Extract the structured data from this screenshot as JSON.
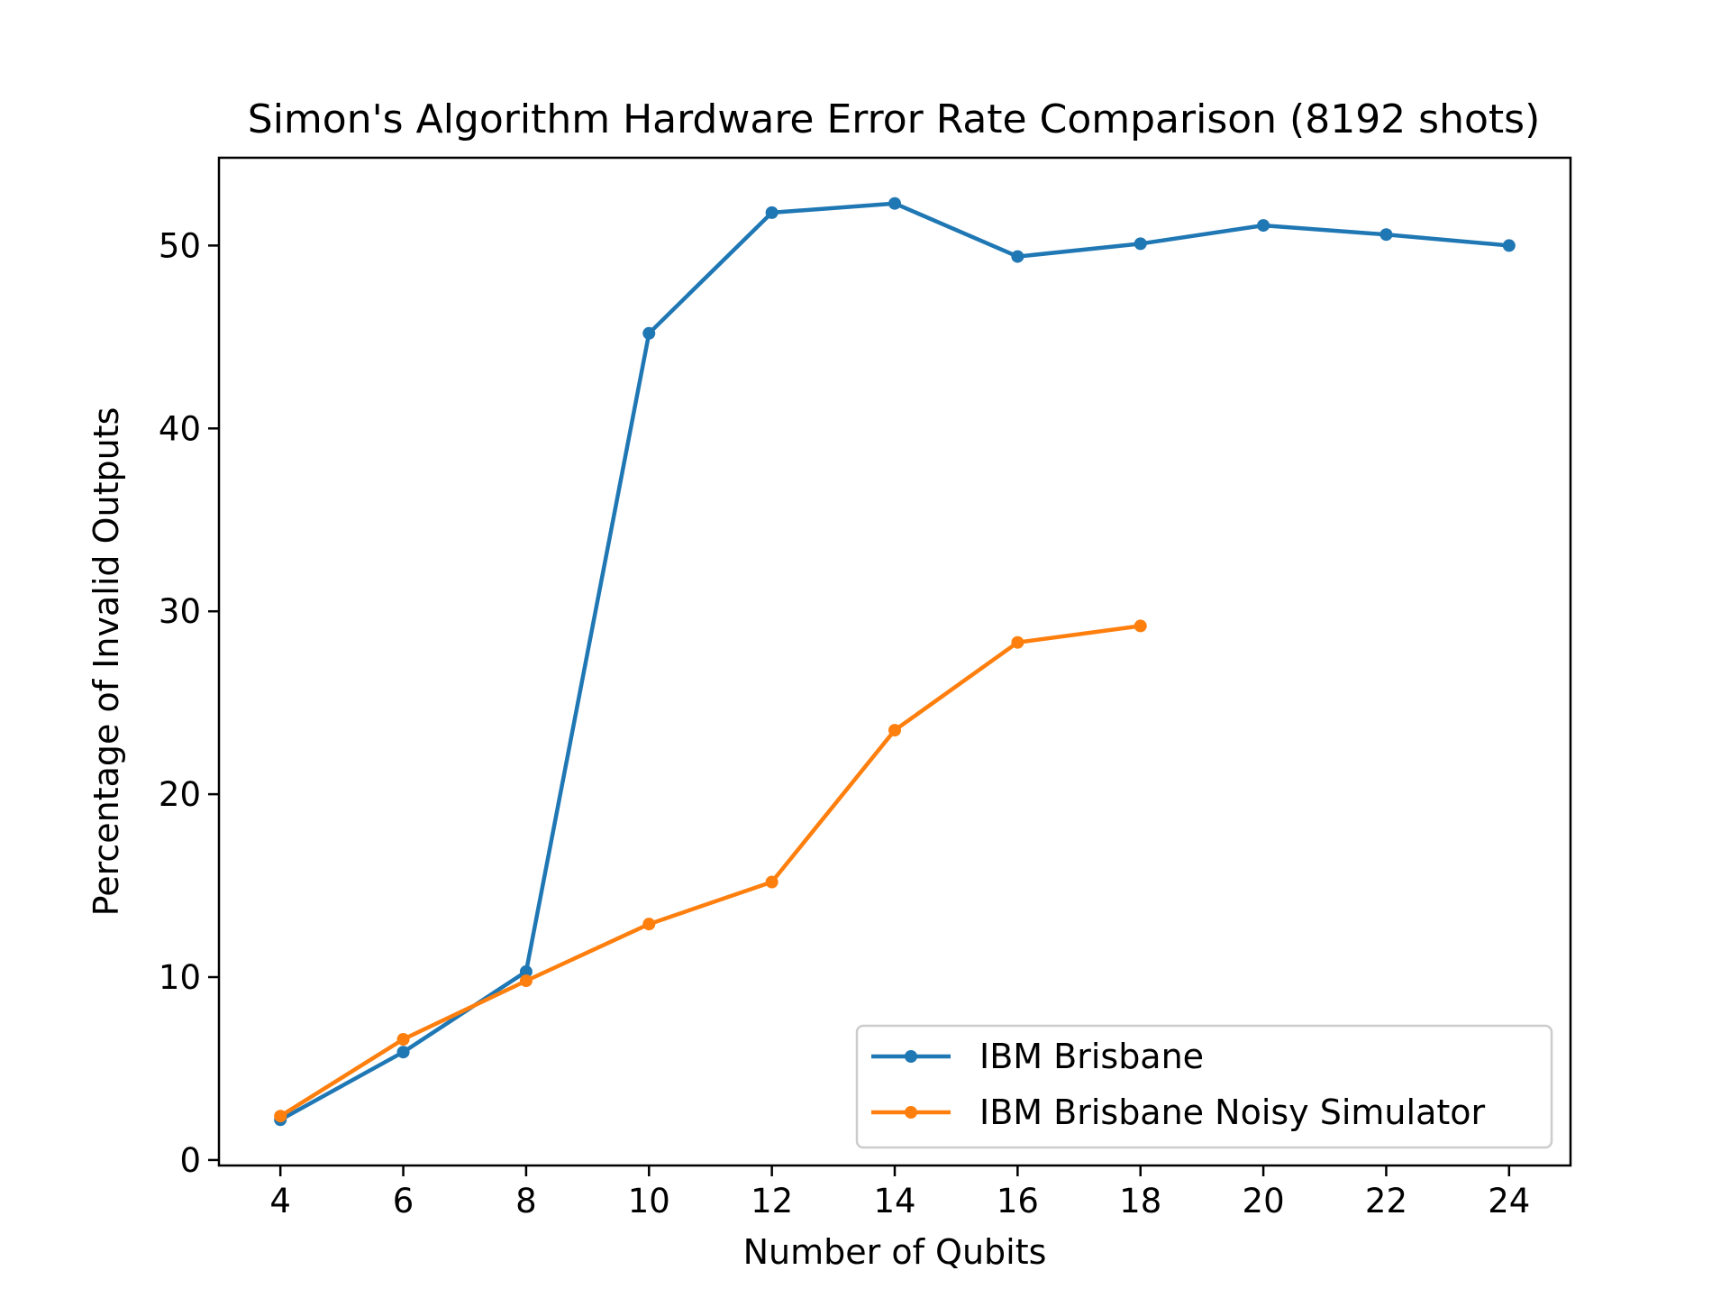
{
  "chart_data": {
    "type": "line",
    "title": "Simon's Algorithm Hardware Error Rate Comparison (8192 shots)",
    "xlabel": "Number of Qubits",
    "ylabel": "Percentage of Invalid Outputs",
    "xlim": [
      3,
      25
    ],
    "ylim": [
      -0.3,
      54.8
    ],
    "xticks": [
      4,
      6,
      8,
      10,
      12,
      14,
      16,
      18,
      20,
      22,
      24
    ],
    "yticks": [
      0,
      10,
      20,
      30,
      40,
      50
    ],
    "grid": false,
    "legend_position": "lower-right",
    "series": [
      {
        "name": "IBM Brisbane",
        "color": "#1f77b4",
        "x": [
          4,
          6,
          8,
          10,
          12,
          14,
          16,
          18,
          20,
          22,
          24
        ],
        "y": [
          2.2,
          5.9,
          10.3,
          45.2,
          51.8,
          52.3,
          49.4,
          50.1,
          51.1,
          50.6,
          50.0
        ]
      },
      {
        "name": "IBM Brisbane Noisy Simulator",
        "color": "#ff7f0e",
        "x": [
          4,
          6,
          8,
          10,
          12,
          14,
          16,
          18
        ],
        "y": [
          2.4,
          6.6,
          9.8,
          12.9,
          15.2,
          23.5,
          28.3,
          29.2
        ]
      }
    ]
  }
}
